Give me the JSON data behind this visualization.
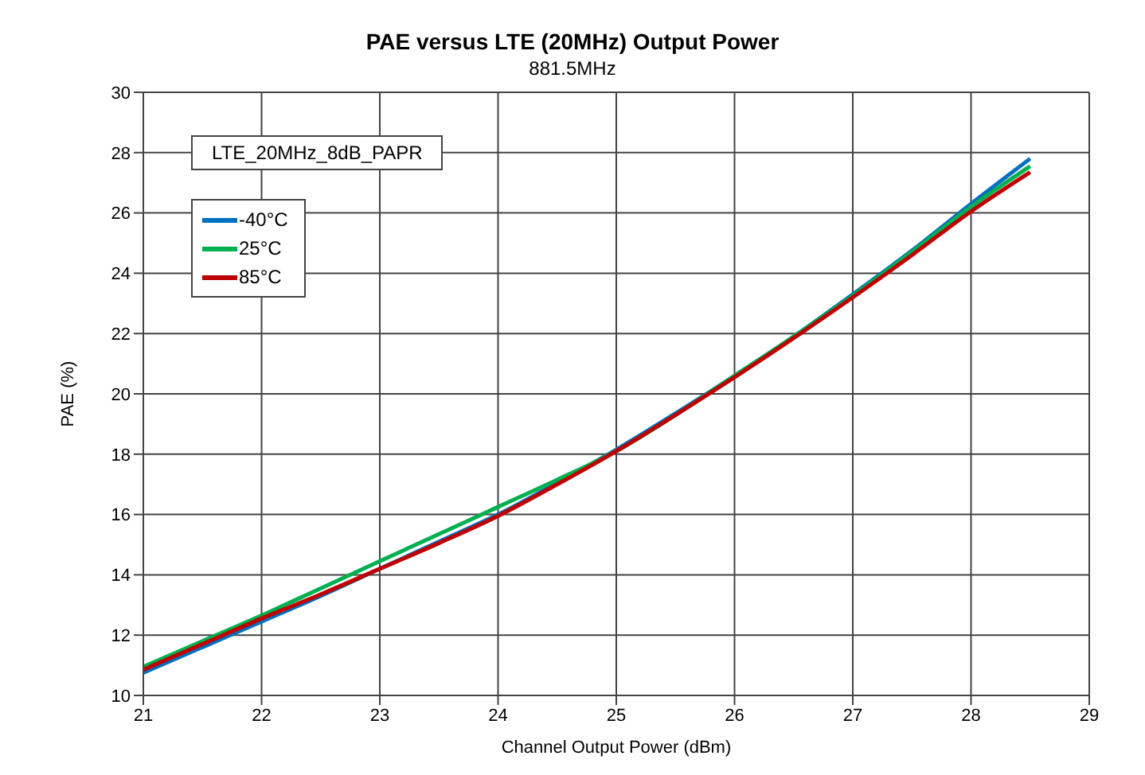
{
  "chart_data": {
    "type": "line",
    "title": "PAE versus LTE (20MHz) Output Power",
    "subtitle": "881.5MHz",
    "xlabel": "Channel Output Power (dBm)",
    "ylabel": "PAE (%)",
    "annotations": [
      "LTE_20MHz_8dB_PAPR"
    ],
    "x": [
      21,
      21.5,
      22,
      22.5,
      23,
      23.5,
      24,
      24.5,
      25,
      25.5,
      26,
      26.5,
      27,
      27.5,
      28,
      28.5
    ],
    "series": [
      {
        "name": "-40°C",
        "color": "#0070c0",
        "values": [
          10.75,
          11.6,
          12.45,
          13.3,
          14.2,
          15.1,
          16.0,
          17.05,
          18.15,
          19.35,
          20.6,
          21.9,
          23.3,
          24.75,
          26.3,
          27.8
        ]
      },
      {
        "name": "25°C",
        "color": "#00b050",
        "values": [
          10.95,
          11.8,
          12.65,
          13.55,
          14.45,
          15.35,
          16.25,
          17.15,
          18.1,
          19.3,
          20.6,
          21.9,
          23.25,
          24.7,
          26.2,
          27.55
        ]
      },
      {
        "name": "85°C",
        "color": "#c00000",
        "values": [
          10.85,
          11.7,
          12.55,
          13.35,
          14.2,
          15.05,
          15.95,
          17.0,
          18.1,
          19.3,
          20.55,
          21.85,
          23.2,
          24.6,
          26.05,
          27.35
        ]
      }
    ],
    "xlim": [
      21,
      29
    ],
    "xticks": [
      21,
      22,
      23,
      24,
      25,
      26,
      27,
      28,
      29
    ],
    "ylim": [
      10,
      30
    ],
    "yticks": [
      10,
      12,
      14,
      16,
      18,
      20,
      22,
      24,
      26,
      28,
      30
    ],
    "grid": true,
    "legend": "top left",
    "marker": "none",
    "line_style": "solid"
  }
}
